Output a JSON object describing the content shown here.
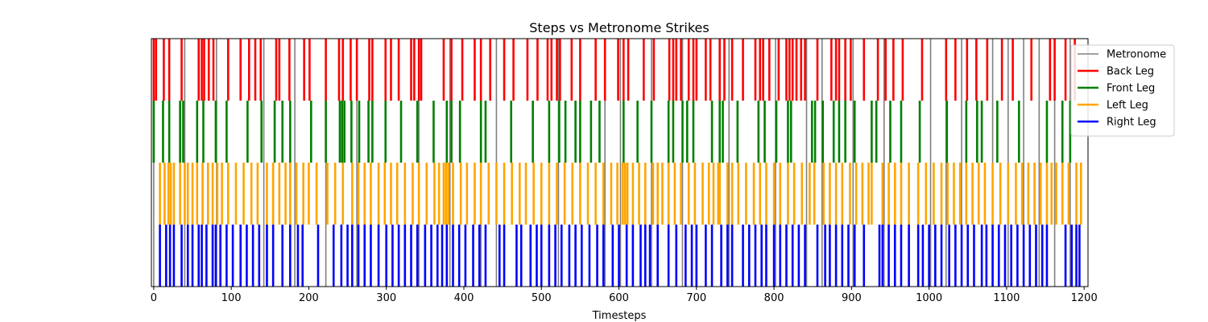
{
  "chart_data": {
    "type": "event-raster",
    "title": "Steps vs Metronome Strikes",
    "xlabel": "Timesteps",
    "ylabel": "",
    "xlim": [
      -3,
      1205
    ],
    "xticks": [
      0,
      100,
      200,
      300,
      400,
      500,
      600,
      700,
      800,
      900,
      1000,
      1100,
      1200
    ],
    "grid": false,
    "legend_position": "top-right",
    "series": [
      {
        "name": "Metronome",
        "color": "#808080",
        "band": "all",
        "x": [
          0,
          40,
          81,
          142,
          182,
          222,
          262,
          342,
          382,
          422,
          442,
          522,
          582,
          602,
          642,
          682,
          742,
          802,
          842,
          862,
          902,
          942,
          1002,
          1022,
          1042,
          1082,
          1102,
          1122,
          1142,
          1162,
          1182
        ]
      },
      {
        "name": "Back Leg",
        "color": "#ff0000",
        "band": "top",
        "x": [
          0,
          3,
          13,
          20,
          36,
          58,
          62,
          65,
          71,
          77,
          96,
          112,
          123,
          131,
          138,
          158,
          162,
          175,
          194,
          201,
          222,
          239,
          244,
          254,
          262,
          278,
          282,
          299,
          306,
          316,
          332,
          336,
          342,
          345,
          374,
          384,
          398,
          414,
          422,
          434,
          452,
          464,
          482,
          495,
          508,
          513,
          520,
          524,
          539,
          550,
          570,
          582,
          599,
          606,
          612,
          632,
          645,
          665,
          670,
          674,
          680,
          690,
          696,
          700,
          712,
          718,
          730,
          736,
          746,
          760,
          776,
          782,
          786,
          794,
          806,
          816,
          820,
          824,
          829,
          835,
          840,
          856,
          874,
          880,
          884,
          892,
          899,
          916,
          934,
          944,
          954,
          966,
          991,
          1022,
          1034,
          1049,
          1061,
          1075,
          1094,
          1108,
          1132,
          1156,
          1162,
          1176,
          1188
        ]
      },
      {
        "name": "Front Leg",
        "color": "#008000",
        "band": "mid",
        "x": [
          0,
          12,
          20,
          34,
          38,
          56,
          64,
          80,
          94,
          121,
          139,
          156,
          166,
          176,
          203,
          222,
          240,
          243,
          246,
          255,
          265,
          277,
          282,
          299,
          319,
          340,
          361,
          378,
          384,
          395,
          422,
          428,
          461,
          489,
          510,
          523,
          531,
          544,
          550,
          564,
          575,
          606,
          624,
          642,
          664,
          670,
          682,
          688,
          696,
          720,
          730,
          734,
          753,
          780,
          788,
          803,
          818,
          822,
          849,
          853,
          863,
          877,
          884,
          892,
          904,
          926,
          932,
          950,
          964,
          988,
          1023,
          1048,
          1062,
          1068,
          1088,
          1116,
          1152,
          1172,
          1182
        ]
      },
      {
        "name": "Left Leg",
        "color": "#ffa500",
        "band": "lower",
        "x": [
          8,
          14,
          19,
          22,
          26,
          34,
          40,
          44,
          50,
          56,
          63,
          70,
          76,
          82,
          88,
          96,
          106,
          116,
          126,
          134,
          146,
          154,
          162,
          170,
          176,
          184,
          193,
          200,
          210,
          224,
          234,
          244,
          256,
          264,
          272,
          280,
          290,
          298,
          306,
          314,
          324,
          334,
          342,
          352,
          362,
          368,
          374,
          377,
          380,
          386,
          396,
          404,
          414,
          422,
          432,
          442,
          452,
          462,
          472,
          480,
          490,
          500,
          510,
          520,
          530,
          540,
          550,
          560,
          570,
          580,
          590,
          598,
          605,
          608,
          611,
          618,
          626,
          634,
          644,
          650,
          656,
          664,
          672,
          680,
          690,
          698,
          708,
          716,
          722,
          728,
          730,
          740,
          746,
          754,
          764,
          774,
          782,
          790,
          800,
          808,
          818,
          826,
          836,
          846,
          852,
          864,
          872,
          880,
          888,
          898,
          906,
          914,
          922,
          926,
          940,
          948,
          956,
          964,
          974,
          986,
          996,
          1006,
          1016,
          1024,
          1032,
          1040,
          1048,
          1056,
          1064,
          1072,
          1082,
          1092,
          1102,
          1112,
          1120,
          1128,
          1136,
          1144,
          1152,
          1158,
          1164,
          1172,
          1180,
          1190,
          1196
        ]
      },
      {
        "name": "Right Leg",
        "color": "#0000ff",
        "band": "bottom",
        "x": [
          8,
          16,
          21,
          26,
          36,
          44,
          50,
          58,
          62,
          68,
          76,
          80,
          86,
          94,
          102,
          112,
          120,
          128,
          136,
          146,
          154,
          166,
          176,
          186,
          192,
          212,
          232,
          242,
          250,
          256,
          264,
          272,
          280,
          290,
          300,
          308,
          316,
          324,
          332,
          340,
          350,
          358,
          366,
          372,
          378,
          386,
          394,
          402,
          412,
          420,
          428,
          446,
          452,
          468,
          474,
          486,
          494,
          500,
          510,
          518,
          526,
          536,
          544,
          552,
          562,
          572,
          580,
          592,
          600,
          610,
          618,
          628,
          634,
          640,
          650,
          664,
          674,
          686,
          694,
          700,
          712,
          720,
          732,
          740,
          746,
          760,
          768,
          776,
          784,
          790,
          800,
          808,
          816,
          824,
          832,
          840,
          856,
          866,
          872,
          880,
          888,
          896,
          904,
          916,
          936,
          940,
          948,
          956,
          964,
          974,
          986,
          992,
          1000,
          1008,
          1016,
          1026,
          1034,
          1042,
          1050,
          1058,
          1068,
          1074,
          1082,
          1090,
          1098,
          1106,
          1114,
          1122,
          1130,
          1138,
          1146,
          1152,
          1176,
          1184,
          1190,
          1194
        ]
      }
    ]
  }
}
